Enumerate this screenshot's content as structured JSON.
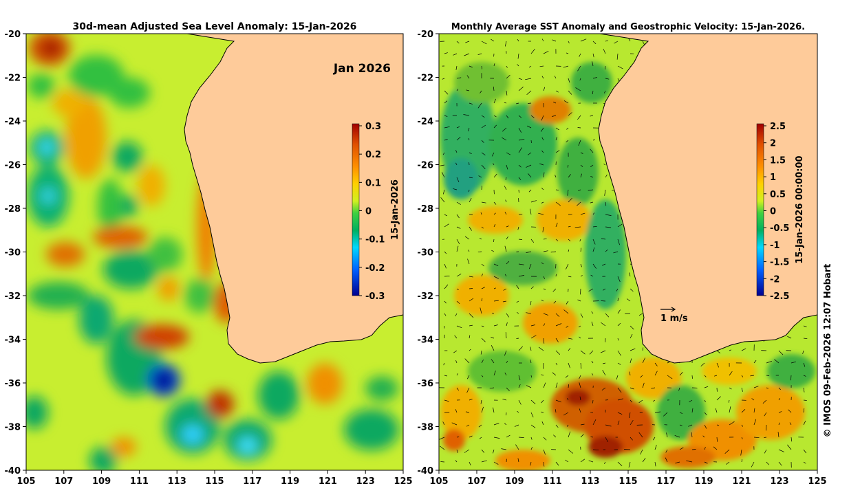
{
  "left_panel": {
    "title": "30d-mean Adjusted Sea Level Anomaly: 15-Jan-2026",
    "inset_label": "Jan 2026",
    "colorbar": {
      "label": "15-Jan-2026",
      "ticks": [
        "0.3",
        "0.2",
        "0.1",
        "0",
        "-0.1",
        "-0.2",
        "-0.3"
      ],
      "range": [
        -0.3,
        0.3
      ]
    },
    "y_ticks": [
      "-20",
      "-22",
      "-24",
      "-26",
      "-28",
      "-30",
      "-32",
      "-34",
      "-36",
      "-38",
      "-40"
    ],
    "x_ticks": [
      "105",
      "107",
      "109",
      "111",
      "113",
      "115",
      "117",
      "119",
      "121",
      "123",
      "125"
    ]
  },
  "right_panel": {
    "title": "Monthly Average SST Anomaly  and Geostrophic Velocity: 15-Jan-2026.",
    "colorbar": {
      "label": "15-Jan-2026 00:00:00",
      "ticks": [
        "2.5",
        "2",
        "1.5",
        "1",
        "0.5",
        "0",
        "-0.5",
        "-1",
        "-1.5",
        "-2",
        "-2.5"
      ],
      "range": [
        -2.5,
        2.5
      ]
    },
    "velocity_scale_label": "1 m/s",
    "y_ticks": [
      "-20",
      "-22",
      "-24",
      "-26",
      "-28",
      "-30",
      "-32",
      "-34",
      "-36",
      "-38",
      "-40"
    ],
    "x_ticks": [
      "105",
      "107",
      "109",
      "111",
      "113",
      "115",
      "117",
      "119",
      "121",
      "123",
      "125"
    ]
  },
  "credit": "© IMOS 09-Feb-2026 12:07 Hobart",
  "colors": {
    "land": "#fecb9a",
    "ocean_base": "#b8f02a",
    "colormap": [
      "#00008f",
      "#0060ff",
      "#00d8ff",
      "#00b060",
      "#40d040",
      "#d0f020",
      "#ffd000",
      "#ff9000",
      "#e05000",
      "#a00000"
    ]
  }
}
